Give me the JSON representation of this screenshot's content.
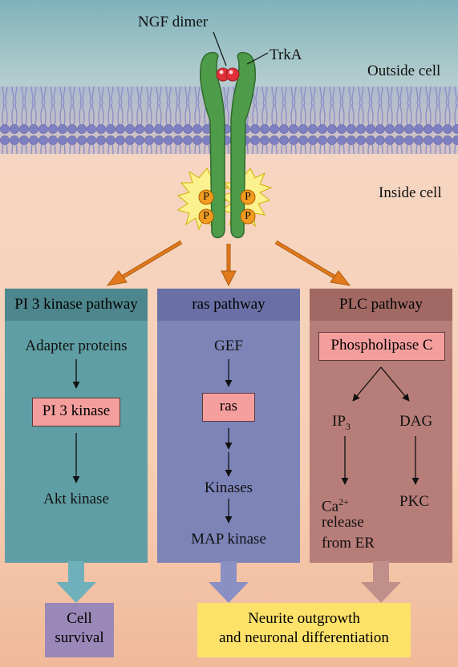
{
  "top": {
    "ngf_label": "NGF dimer",
    "trka_label": "TrkA",
    "outside_label": "Outside cell",
    "inside_label": "Inside cell",
    "phospho_label": "P"
  },
  "pi3": {
    "header": "PI 3 kinase pathway",
    "step1": "Adapter proteins",
    "box": "PI 3 kinase",
    "step3": "Akt kinase"
  },
  "ras": {
    "header": "ras pathway",
    "step1": "GEF",
    "box": "ras",
    "step3": "Kinases",
    "step4": "MAP kinase"
  },
  "plc": {
    "header": "PLC  pathway",
    "box": "Phospholipase C",
    "ip_base": "IP",
    "ip_sub": "3",
    "dag": "DAG",
    "ca_base": "Ca",
    "ca_sup": "2+",
    "release_1": "release",
    "release_2": "from ER",
    "pkc": "PKC"
  },
  "outcomes": {
    "survival_1": "Cell",
    "survival_2": "survival",
    "neurite_1": "Neurite outgrowth",
    "neurite_2": "and neuronal differentiation"
  },
  "colors": {
    "pi3_panel": "#5f9ea4",
    "pi3_header": "#4d868c",
    "ras_panel": "#7d84b8",
    "ras_header": "#6a70a6",
    "plc_panel": "#b77d78",
    "plc_header": "#a26964",
    "highlight_box": "#f59e9e",
    "outcome_yellow": "#fde26a",
    "outcome_purple": "#9a88b8",
    "receptor": "#4e9b4a",
    "ngf": "#e0303a",
    "arrow_orange": "#e07a1c"
  }
}
